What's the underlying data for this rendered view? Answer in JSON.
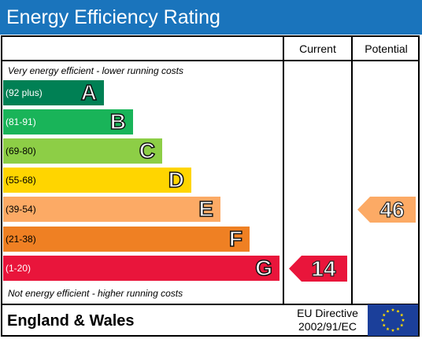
{
  "title": "Energy Efficiency Rating",
  "columns": {
    "current": "Current",
    "potential": "Potential"
  },
  "notes": {
    "top": "Very energy efficient - lower running costs",
    "bottom": "Not energy efficient - higher running costs"
  },
  "bands": [
    {
      "range": "(92 plus)",
      "letter": "A",
      "color": "#008054"
    },
    {
      "range": "(81-91)",
      "letter": "B",
      "color": "#19b459"
    },
    {
      "range": "(69-80)",
      "letter": "C",
      "color": "#8dce46"
    },
    {
      "range": "(55-68)",
      "letter": "D",
      "color": "#ffd500"
    },
    {
      "range": "(39-54)",
      "letter": "E",
      "color": "#fcaa65"
    },
    {
      "range": "(21-38)",
      "letter": "F",
      "color": "#ef8023"
    },
    {
      "range": "(1-20)",
      "letter": "G",
      "color": "#e9153b"
    }
  ],
  "ratings": {
    "current": {
      "value": "14",
      "band": "G",
      "color": "#e9153b"
    },
    "potential": {
      "value": "46",
      "band": "E",
      "color": "#fcaa65"
    }
  },
  "footer": {
    "region": "England & Wales",
    "directive_line1": "EU Directive",
    "directive_line2": "2002/91/EC",
    "flag_icon": "eu-flag-icon"
  }
}
